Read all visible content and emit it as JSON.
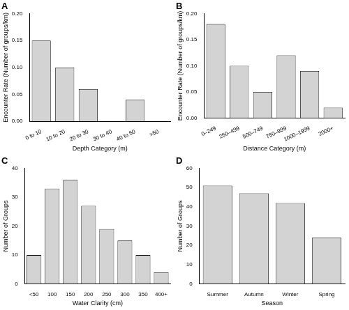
{
  "chart_data": [
    {
      "type": "bar",
      "title": "A",
      "categories": [
        "0 to 10",
        "10 to 20",
        "20 to 30",
        "30 to 40",
        "40 to 50",
        ">50"
      ],
      "values": [
        0.15,
        0.1,
        0.06,
        0,
        0.04,
        0
      ],
      "color": "#d3d3d3",
      "x_label": "Depth Category (m)",
      "y_label": "Encounter Rate (Number of groups/km)",
      "ylim": [
        0,
        0.2
      ],
      "yticks": [
        {
          "value": 0,
          "label": "0.00"
        },
        {
          "value": 0.05,
          "label": "0.05"
        },
        {
          "value": 0.1,
          "label": "0.10"
        },
        {
          "value": 0.15,
          "label": "0.15"
        },
        {
          "value": 0.2,
          "label": "0.20"
        }
      ],
      "grid": false
    },
    {
      "type": "bar",
      "title": "B",
      "categories": [
        "0–249",
        "250–499",
        "500–749",
        "750–999",
        "1000–1999",
        "2000+"
      ],
      "values": [
        0.18,
        0.1,
        0.05,
        0.12,
        0.09,
        0.02
      ],
      "color": "#d3d3d3",
      "x_label": "Distance Category (m)",
      "y_label": "Encounter Rate (Number of groups/km)",
      "ylim": [
        0,
        0.2
      ],
      "yticks": [
        {
          "value": 0,
          "label": "0.00"
        },
        {
          "value": 0.05,
          "label": "0.05"
        },
        {
          "value": 0.1,
          "label": "0.10"
        },
        {
          "value": 0.15,
          "label": "0.15"
        },
        {
          "value": 0.2,
          "label": "0.20"
        }
      ],
      "grid": false
    },
    {
      "type": "bar",
      "title": "C",
      "categories": [
        "<50",
        "100",
        "150",
        "200",
        "250",
        "300",
        "350",
        "400+"
      ],
      "values": [
        10,
        33,
        36,
        27,
        19,
        15,
        10,
        4
      ],
      "color": "#d3d3d3",
      "x_label": "Water Clarity (cm)",
      "y_label": "Number of Groups",
      "ylim": [
        0,
        40
      ],
      "yticks": [
        0,
        10,
        20,
        30,
        40
      ],
      "grid": false
    },
    {
      "type": "bar",
      "title": "D",
      "categories": [
        "Summer",
        "Autumn",
        "Winter",
        "Spring"
      ],
      "values": [
        51,
        47,
        42,
        24
      ],
      "color": "#d3d3d3",
      "x_label": "Season",
      "y_label": "Number of Groups",
      "ylim": [
        0,
        60
      ],
      "yticks": [
        0,
        10,
        20,
        30,
        40,
        50,
        60
      ],
      "grid": false
    }
  ]
}
